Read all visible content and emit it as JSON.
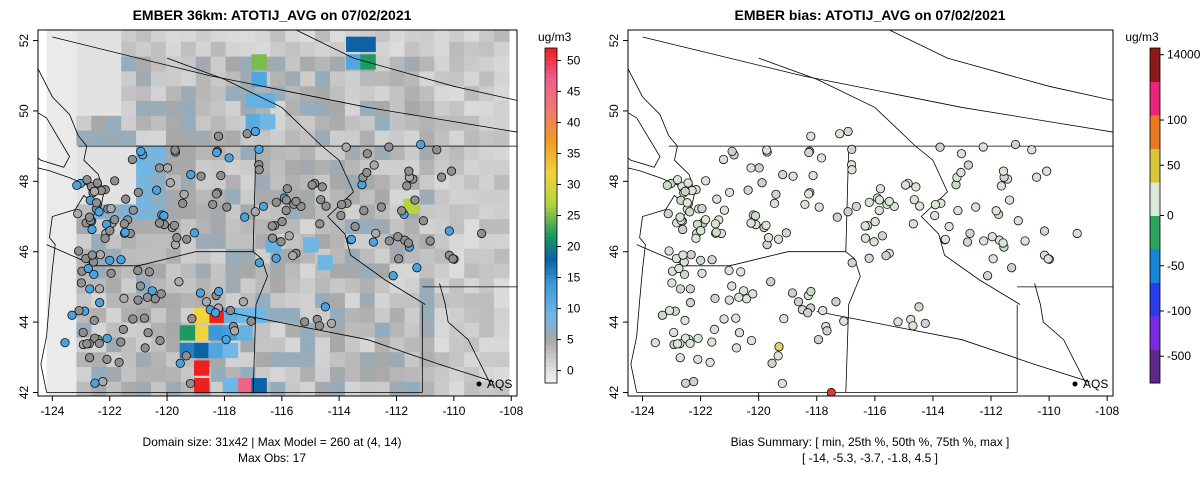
{
  "chart_data": [
    {
      "type": "heatmap",
      "title": "EMBER 36km: ATOTIJ_AVG on 07/02/2021",
      "xlim": [
        -124.5,
        -107.8
      ],
      "ylim": [
        41.9,
        52.3
      ],
      "x_ticks": [
        "-124",
        "-122",
        "-120",
        "-118",
        "-116",
        "-114",
        "-112",
        "-110",
        "-108"
      ],
      "y_ticks": [
        "42",
        "44",
        "46",
        "48",
        "50",
        "52"
      ],
      "colorbar": {
        "unit": "ug/m3",
        "range": [
          -2,
          52
        ],
        "ticks": [
          "0",
          "5",
          "10",
          "15",
          "20",
          "25",
          "30",
          "35",
          "40",
          "45",
          "50"
        ],
        "stops": [
          {
            "v": -2,
            "color": "#f2f2f2"
          },
          {
            "v": 0,
            "color": "#e2e2e2"
          },
          {
            "v": 5,
            "color": "#a8a8a8"
          },
          {
            "v": 9,
            "color": "#6fb7e6"
          },
          {
            "v": 14,
            "color": "#3c9ad8"
          },
          {
            "v": 18,
            "color": "#0b63a6"
          },
          {
            "v": 22,
            "color": "#1e9a60"
          },
          {
            "v": 27,
            "color": "#b6d43f"
          },
          {
            "v": 32,
            "color": "#f1d33b"
          },
          {
            "v": 37,
            "color": "#f09d22"
          },
          {
            "v": 42,
            "color": "#ef7a6b"
          },
          {
            "v": 47,
            "color": "#ee5f8f"
          },
          {
            "v": 52,
            "color": "#ee1f1f"
          }
        ]
      },
      "grid_values": [
        {
          "lon": -113.5,
          "lat": 51.9,
          "v": 18
        },
        {
          "lon": -113.0,
          "lat": 51.9,
          "v": 18
        },
        {
          "lon": -113.5,
          "lat": 51.4,
          "v": 12
        },
        {
          "lon": -113.0,
          "lat": 51.4,
          "v": 22
        },
        {
          "lon": -116.8,
          "lat": 51.4,
          "v": 25
        },
        {
          "lon": -116.8,
          "lat": 50.9,
          "v": 12
        },
        {
          "lon": -117.0,
          "lat": 50.3,
          "v": 10
        },
        {
          "lon": -116.5,
          "lat": 50.3,
          "v": 10
        },
        {
          "lon": -117.0,
          "lat": 49.7,
          "v": 11
        },
        {
          "lon": -116.5,
          "lat": 49.7,
          "v": 9
        },
        {
          "lon": -111.5,
          "lat": 47.3,
          "v": 27
        },
        {
          "lon": -116.3,
          "lat": 46.2,
          "v": 10
        },
        {
          "lon": -115.0,
          "lat": 46.2,
          "v": 9
        },
        {
          "lon": -114.5,
          "lat": 45.7,
          "v": 9
        },
        {
          "lon": -117.8,
          "lat": 44.2,
          "v": 10
        },
        {
          "lon": -117.3,
          "lat": 44.2,
          "v": 9
        },
        {
          "lon": -116.8,
          "lat": 44.2,
          "v": 9
        },
        {
          "lon": -118.3,
          "lat": 44.2,
          "v": 52
        },
        {
          "lon": -118.8,
          "lat": 44.2,
          "v": 32
        },
        {
          "lon": -118.8,
          "lat": 43.7,
          "v": 32
        },
        {
          "lon": -118.3,
          "lat": 43.7,
          "v": 14
        },
        {
          "lon": -117.8,
          "lat": 43.7,
          "v": 13
        },
        {
          "lon": -117.3,
          "lat": 43.7,
          "v": 10
        },
        {
          "lon": -119.3,
          "lat": 43.7,
          "v": 22
        },
        {
          "lon": -119.3,
          "lat": 43.2,
          "v": 16
        },
        {
          "lon": -118.8,
          "lat": 43.2,
          "v": 18
        },
        {
          "lon": -118.3,
          "lat": 43.2,
          "v": 12
        },
        {
          "lon": -117.8,
          "lat": 43.2,
          "v": 9
        },
        {
          "lon": -118.8,
          "lat": 42.7,
          "v": 52
        },
        {
          "lon": -118.8,
          "lat": 42.2,
          "v": 52
        },
        {
          "lon": -117.3,
          "lat": 42.2,
          "v": 46
        },
        {
          "lon": -116.8,
          "lat": 42.2,
          "v": 18
        },
        {
          "lon": -117.8,
          "lat": 42.2,
          "v": 9
        }
      ],
      "annotation": "AQS",
      "footer": [
        "Domain size: 31x42 | Max Model = 260 at (4, 14)",
        "Max Obs: 17"
      ]
    },
    {
      "type": "scatter",
      "title": "EMBER bias: ATOTIJ_AVG on 07/02/2021",
      "xlim": [
        -124.5,
        -107.8
      ],
      "ylim": [
        41.9,
        52.3
      ],
      "x_ticks": [
        "-124",
        "-122",
        "-120",
        "-118",
        "-116",
        "-114",
        "-112",
        "-110",
        "-108"
      ],
      "y_ticks": [
        "42",
        "44",
        "46",
        "48",
        "50",
        "52"
      ],
      "colorbar": {
        "unit": "ug/m3",
        "ticks": [
          "-500",
          "-100",
          "-50",
          "0",
          "50",
          "100",
          "14000"
        ],
        "colors": [
          "#5d2a8a",
          "#7d2be0",
          "#2a3bea",
          "#1386d6",
          "#2aa35f",
          "#dce8da",
          "#d9c63a",
          "#e9791e",
          "#e8247c",
          "#8e1a1a"
        ]
      },
      "annotation": "AQS",
      "footer": [
        "Bias Summary: [ min, 25th %, 50th %, 75th %, max ]",
        "[ -14,   -5.3,   -3.7,   -1.8,   4.5 ]"
      ]
    }
  ]
}
